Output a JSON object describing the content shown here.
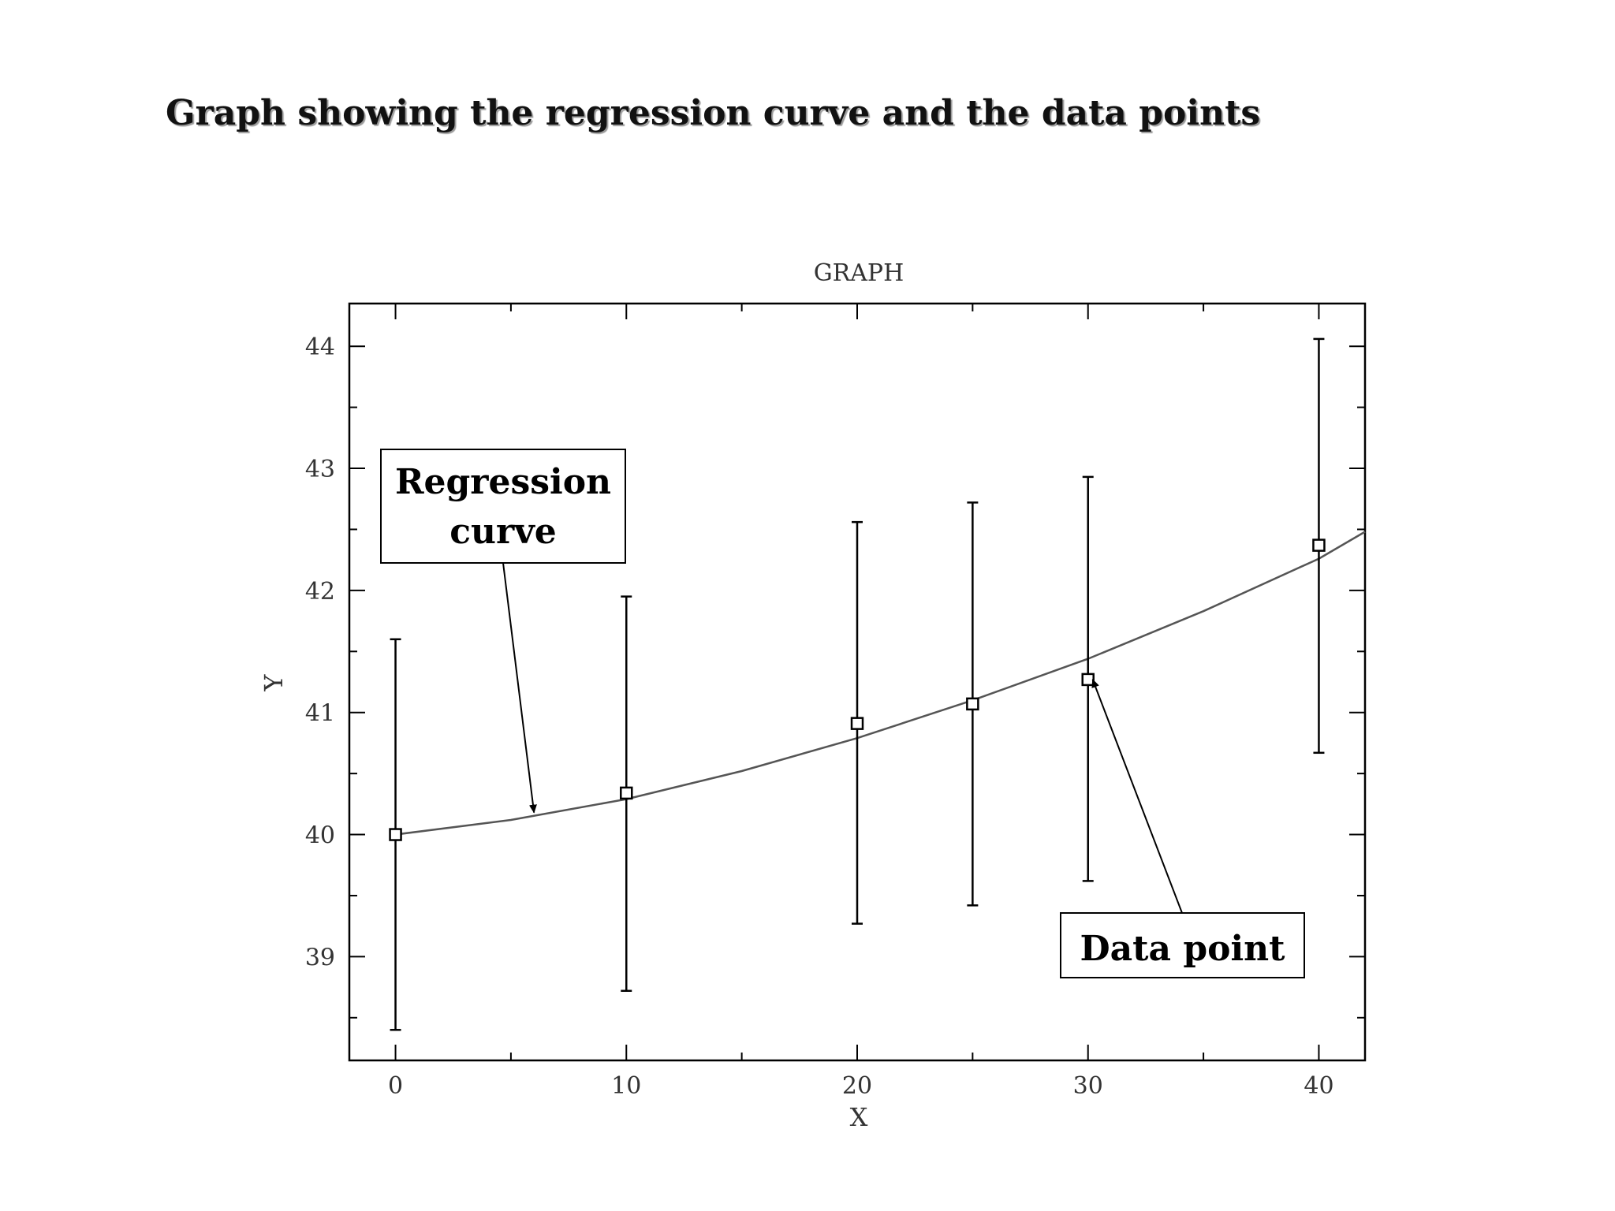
{
  "page": {
    "heading": "Graph showing the regression curve and the data points"
  },
  "chart_data": {
    "type": "scatter",
    "title": "GRAPH",
    "xlabel": "X",
    "ylabel": "Y",
    "xlim": [
      -2,
      42
    ],
    "ylim": [
      38.15,
      44.35
    ],
    "xticks": [
      0,
      10,
      20,
      30,
      40
    ],
    "yticks": [
      39,
      40,
      41,
      42,
      43,
      44
    ],
    "grid": false,
    "points": [
      {
        "x": 0,
        "y": 40.0,
        "lo": 38.4,
        "hi": 41.6
      },
      {
        "x": 10,
        "y": 40.34,
        "lo": 38.72,
        "hi": 41.95
      },
      {
        "x": 20,
        "y": 40.91,
        "lo": 39.27,
        "hi": 42.56
      },
      {
        "x": 25,
        "y": 41.07,
        "lo": 39.42,
        "hi": 42.72
      },
      {
        "x": 30,
        "y": 41.27,
        "lo": 39.62,
        "hi": 42.93
      },
      {
        "x": 40,
        "y": 42.37,
        "lo": 40.67,
        "hi": 44.06
      }
    ],
    "curve": {
      "x": [
        0,
        5,
        10,
        15,
        20,
        25,
        30,
        35,
        40,
        42
      ],
      "y": [
        40.0,
        40.12,
        40.29,
        40.52,
        40.79,
        41.1,
        41.44,
        41.83,
        42.26,
        42.48
      ]
    },
    "annotations": [
      {
        "name": "regression-curve-callout",
        "lines": [
          "Regression",
          "curve"
        ],
        "target": {
          "x": 6,
          "y": 40.18
        }
      },
      {
        "name": "data-point-callout",
        "lines": [
          "Data point"
        ],
        "target": {
          "x": 30.2,
          "y": 41.27
        }
      }
    ]
  }
}
